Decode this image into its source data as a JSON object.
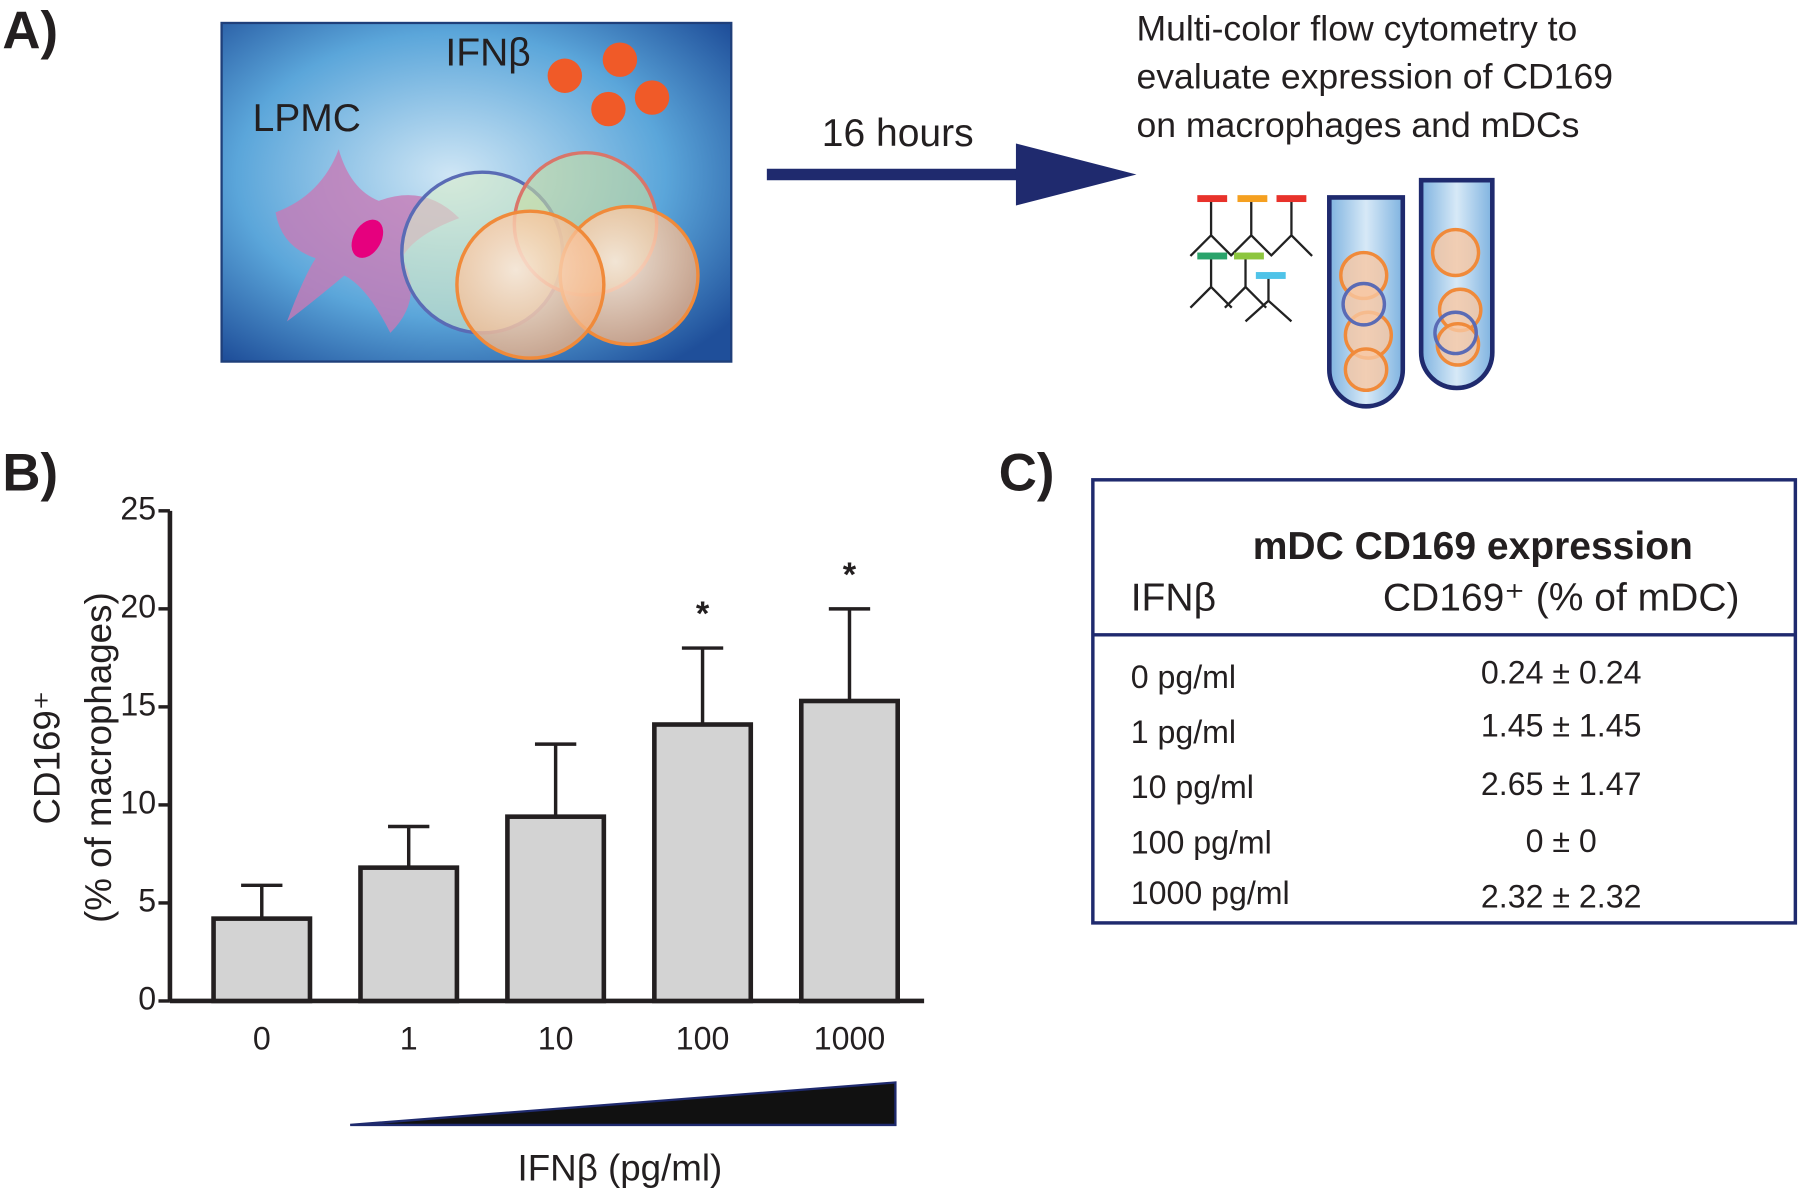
{
  "panel_a": {
    "label": "A)",
    "cell_label": "LPMC",
    "cytokine_label": "IFNβ",
    "arrow_label": "16 hours",
    "readout": [
      "Multi-color flow cytometry to",
      "evaluate expression of CD169",
      "on macrophages and mDCs"
    ]
  },
  "chart_data": {
    "type": "bar",
    "panel_label": "B)",
    "y_label": [
      "CD169⁺",
      "(% of macrophages)"
    ],
    "x_label": "IFNβ (pg/ml)",
    "categories": [
      "0",
      "1",
      "10",
      "100",
      "1000"
    ],
    "values": [
      4.2,
      6.8,
      9.4,
      14.1,
      15.3
    ],
    "errors": [
      1.7,
      2.1,
      3.7,
      3.9,
      4.7
    ],
    "significance": [
      null,
      null,
      null,
      "*",
      "*"
    ],
    "color": "#d3d3d3",
    "ylim": [
      0,
      25
    ],
    "yticks": [
      0,
      5,
      10,
      15,
      20,
      25
    ]
  },
  "table": {
    "panel_label": "C)",
    "title": "mDC CD169 expression",
    "columns": [
      "IFNβ",
      "CD169⁺ (% of mDC)"
    ],
    "rows": [
      [
        "0 pg/ml",
        "0.24 ± 0.24"
      ],
      [
        "1 pg/ml",
        "1.45 ± 1.45"
      ],
      [
        "10 pg/ml",
        "2.65 ± 1.47"
      ],
      [
        "100 pg/ml",
        "0 ± 0"
      ],
      [
        "1000 pg/ml",
        "2.32 ± 2.32"
      ]
    ]
  }
}
